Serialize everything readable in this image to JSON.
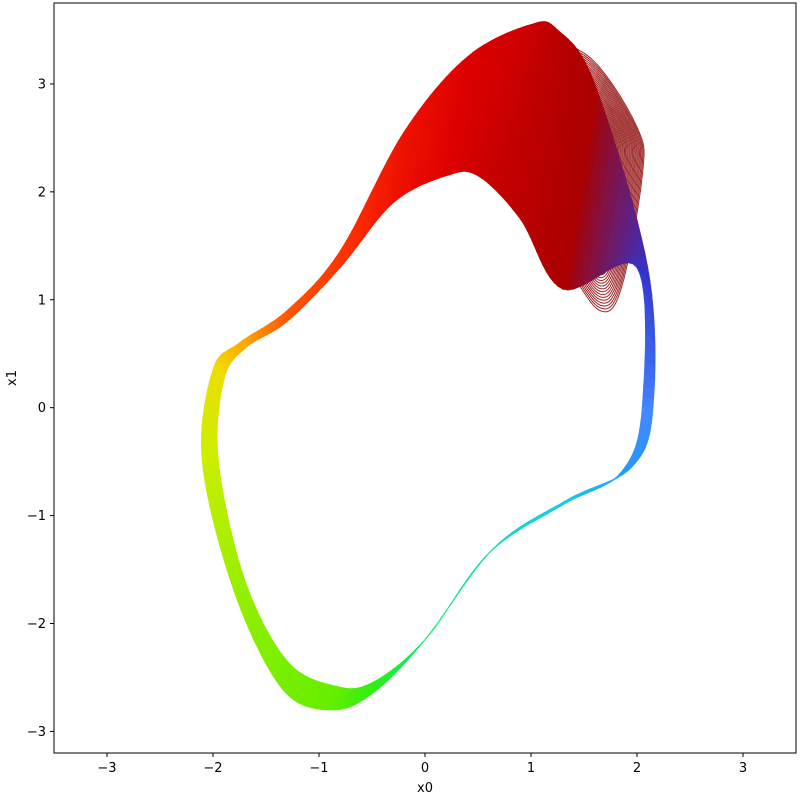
{
  "chart_data": {
    "type": "line",
    "title": "",
    "xlabel": "x0",
    "ylabel": "x1",
    "xlim": [
      -3.5,
      3.5
    ],
    "ylim": [
      -3.2,
      3.75
    ],
    "grid": false,
    "legend": "none",
    "x_ticks": [
      -3,
      -2,
      -1,
      0,
      1,
      2,
      3
    ],
    "y_ticks": [
      -3,
      -2,
      -1,
      0,
      1,
      2,
      3
    ],
    "x_tick_labels": [
      "−3",
      "−2",
      "−1",
      "0",
      "1",
      "2",
      "3"
    ],
    "y_tick_labels": [
      "−3",
      "−2",
      "−1",
      "0",
      "1",
      "2",
      "3"
    ],
    "colormap": "jet",
    "limit_cycle": {
      "inner": [
        [
          2.0,
          1.3
        ],
        [
          2.05,
          0.0
        ],
        [
          1.85,
          -0.6
        ],
        [
          1.3,
          -0.9
        ],
        [
          0.6,
          -1.35
        ],
        [
          0.0,
          -2.15
        ],
        [
          -0.5,
          -2.55
        ],
        [
          -0.85,
          -2.58
        ],
        [
          -1.3,
          -2.35
        ],
        [
          -1.7,
          -1.6
        ],
        [
          -1.95,
          -0.5
        ],
        [
          -1.9,
          0.25
        ],
        [
          -1.7,
          0.55
        ],
        [
          -1.3,
          0.8
        ],
        [
          -0.8,
          1.3
        ],
        [
          -0.3,
          1.9
        ],
        [
          0.2,
          2.15
        ],
        [
          0.5,
          2.15
        ],
        [
          0.9,
          1.75
        ],
        [
          1.3,
          1.1
        ]
      ],
      "outer": [
        [
          2.1,
          1.3
        ],
        [
          2.15,
          0.0
        ],
        [
          1.95,
          -0.55
        ],
        [
          1.35,
          -0.85
        ],
        [
          0.65,
          -1.3
        ],
        [
          0.0,
          -2.15
        ],
        [
          -0.5,
          -2.65
        ],
        [
          -0.9,
          -2.8
        ],
        [
          -1.35,
          -2.6
        ],
        [
          -1.8,
          -1.7
        ],
        [
          -2.1,
          -0.5
        ],
        [
          -2.0,
          0.35
        ],
        [
          -1.75,
          0.6
        ],
        [
          -1.3,
          0.9
        ],
        [
          -0.8,
          1.45
        ],
        [
          -0.2,
          2.55
        ],
        [
          0.4,
          3.25
        ],
        [
          1.0,
          3.55
        ],
        [
          1.25,
          3.5
        ],
        [
          1.6,
          3.0
        ]
      ],
      "colors": [
        "#3333cc",
        "#4488ff",
        "#2299ff",
        "#11ccee",
        "#11ddaa",
        "#00ee66",
        "#33ee11",
        "#66ee00",
        "#77ee00",
        "#99ee00",
        "#ccee00",
        "#eedd00",
        "#ffaa00",
        "#ff5500",
        "#ff3300",
        "#ee1100",
        "#dd0000",
        "#cc0000",
        "#bb0000",
        "#aa0000"
      ]
    },
    "transient": {
      "color": "#8b0000",
      "num_curves": 46,
      "start": [
        [
          1.2,
          2.45
        ],
        [
          1.55,
          2.45
        ],
        [
          1.6,
          2.2
        ],
        [
          1.95,
          1.5
        ]
      ],
      "end": [
        [
          0.9,
          2.5
        ],
        [
          1.1,
          3.3
        ],
        [
          1.55,
          3.25
        ],
        [
          2.0,
          2.6
        ],
        [
          2.05,
          2.15
        ],
        [
          1.85,
          1.1
        ],
        [
          1.65,
          0.9
        ],
        [
          1.35,
          1.3
        ],
        [
          0.9,
          2.0
        ]
      ]
    }
  }
}
